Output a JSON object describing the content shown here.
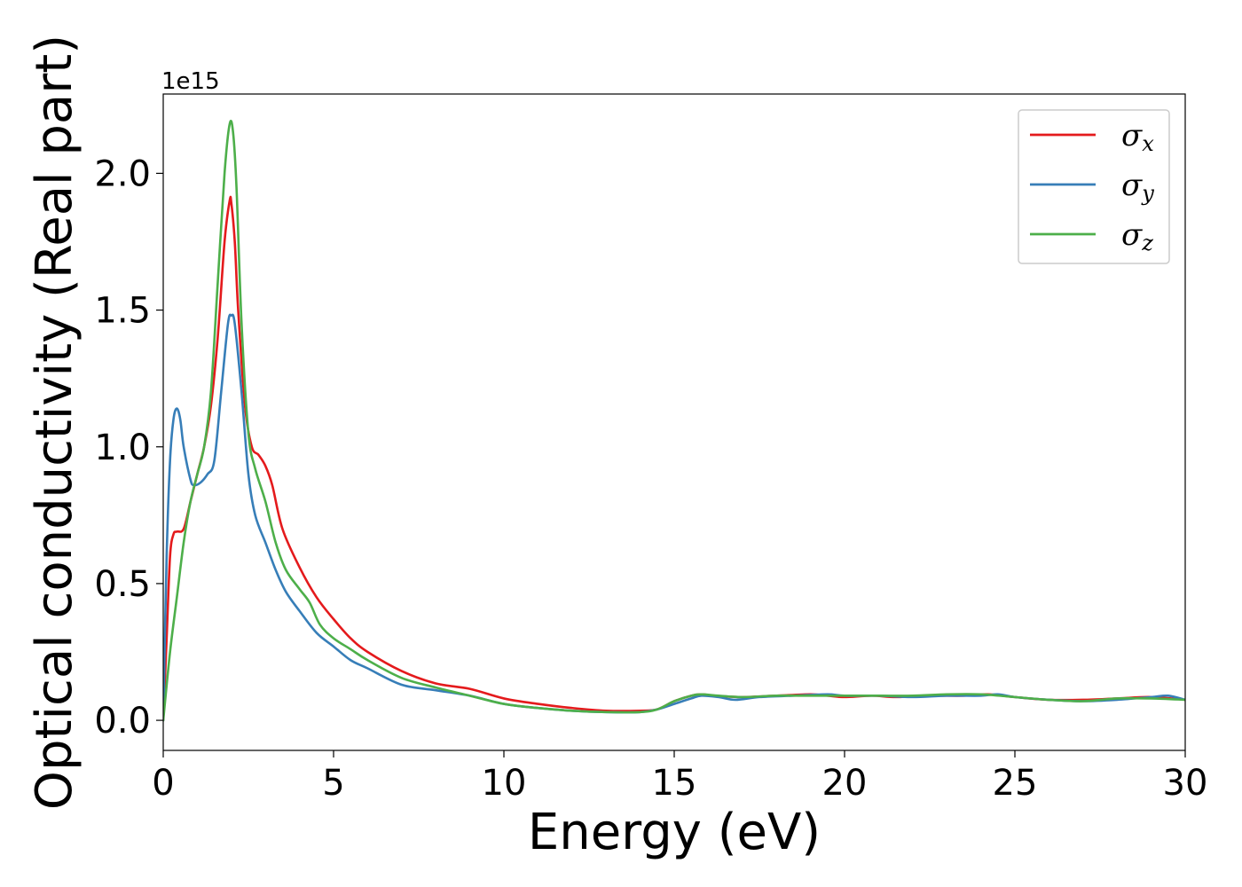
{
  "chart_data": {
    "type": "line",
    "title": "",
    "xlabel": "Energy (eV)",
    "ylabel": "Optical conductivity (Real part)",
    "y_offset_label": "1e15",
    "xlim": [
      0,
      30
    ],
    "ylim": [
      -0.11,
      2.29
    ],
    "xticks": [
      0,
      5,
      10,
      15,
      20,
      25,
      30
    ],
    "xtick_labels": [
      "0",
      "5",
      "10",
      "15",
      "20",
      "25",
      "30"
    ],
    "yticks": [
      0.0,
      0.5,
      1.0,
      1.5,
      2.0
    ],
    "ytick_labels": [
      "0.0",
      "0.5",
      "1.0",
      "1.5",
      "2.0"
    ],
    "grid": false,
    "legend_position": "top-right",
    "series": [
      {
        "name": "σx",
        "legend_symbol": "σ",
        "legend_sub": "x",
        "color": "#e41a1c",
        "x": [
          0,
          0.1,
          0.2,
          0.3,
          0.4,
          0.6,
          0.8,
          1.0,
          1.2,
          1.4,
          1.6,
          1.8,
          1.95,
          2.0,
          2.1,
          2.2,
          2.4,
          2.6,
          2.8,
          3.0,
          3.2,
          3.5,
          4.0,
          4.5,
          5.0,
          5.5,
          6.0,
          7.0,
          8.0,
          9.0,
          10.0,
          11.0,
          12.0,
          13.0,
          14.0,
          14.5,
          15.0,
          15.5,
          15.8,
          16.2,
          17.0,
          18.0,
          19.0,
          19.5,
          20.0,
          20.8,
          21.5,
          22.5,
          23.5,
          24.2,
          25.0,
          26.0,
          27.0,
          28.0,
          29.0,
          30.0
        ],
        "y": [
          0.0,
          0.3,
          0.6,
          0.68,
          0.69,
          0.7,
          0.8,
          0.9,
          1.0,
          1.15,
          1.4,
          1.75,
          1.9,
          1.89,
          1.75,
          1.5,
          1.15,
          1.0,
          0.97,
          0.93,
          0.86,
          0.7,
          0.56,
          0.45,
          0.37,
          0.3,
          0.25,
          0.18,
          0.135,
          0.115,
          0.08,
          0.06,
          0.045,
          0.035,
          0.035,
          0.04,
          0.07,
          0.09,
          0.095,
          0.09,
          0.085,
          0.09,
          0.095,
          0.09,
          0.085,
          0.09,
          0.085,
          0.09,
          0.09,
          0.095,
          0.085,
          0.075,
          0.075,
          0.08,
          0.085,
          0.075
        ]
      },
      {
        "name": "σy",
        "legend_symbol": "σ",
        "legend_sub": "y",
        "color": "#377eb8",
        "x": [
          0,
          0.1,
          0.2,
          0.3,
          0.4,
          0.5,
          0.6,
          0.8,
          0.9,
          1.1,
          1.3,
          1.5,
          1.7,
          1.9,
          2.0,
          2.1,
          2.3,
          2.5,
          2.7,
          3.0,
          3.3,
          3.6,
          4.0,
          4.5,
          5.0,
          5.5,
          6.0,
          7.0,
          8.0,
          9.0,
          10.0,
          11.0,
          12.0,
          13.0,
          14.0,
          14.5,
          15.0,
          15.5,
          15.8,
          16.3,
          16.8,
          17.5,
          18.5,
          19.5,
          20.0,
          21.0,
          22.0,
          23.0,
          24.0,
          24.5,
          25.0,
          26.0,
          27.0,
          28.0,
          29.0,
          29.5,
          30.0
        ],
        "y": [
          0.0,
          0.6,
          0.95,
          1.1,
          1.14,
          1.1,
          1.0,
          0.88,
          0.86,
          0.87,
          0.9,
          0.95,
          1.2,
          1.45,
          1.48,
          1.45,
          1.2,
          0.9,
          0.75,
          0.65,
          0.55,
          0.47,
          0.4,
          0.32,
          0.27,
          0.22,
          0.19,
          0.13,
          0.11,
          0.09,
          0.06,
          0.045,
          0.035,
          0.03,
          0.03,
          0.04,
          0.06,
          0.08,
          0.09,
          0.085,
          0.075,
          0.085,
          0.09,
          0.095,
          0.09,
          0.09,
          0.085,
          0.09,
          0.09,
          0.095,
          0.085,
          0.075,
          0.07,
          0.075,
          0.085,
          0.09,
          0.075
        ]
      },
      {
        "name": "σz",
        "legend_symbol": "σ",
        "legend_sub": "z",
        "color": "#4daf4a",
        "x": [
          0,
          0.2,
          0.4,
          0.6,
          0.8,
          1.0,
          1.2,
          1.4,
          1.6,
          1.8,
          1.95,
          2.05,
          2.15,
          2.3,
          2.5,
          2.7,
          3.0,
          3.3,
          3.6,
          4.0,
          4.3,
          4.6,
          5.0,
          5.5,
          6.0,
          7.0,
          8.0,
          9.0,
          10.0,
          11.0,
          12.0,
          13.0,
          14.0,
          14.5,
          15.0,
          15.5,
          15.8,
          16.3,
          17.0,
          18.0,
          19.0,
          20.0,
          21.0,
          22.0,
          23.0,
          24.0,
          25.0,
          26.0,
          27.0,
          28.0,
          29.0,
          30.0
        ],
        "y": [
          0.0,
          0.25,
          0.45,
          0.65,
          0.8,
          0.9,
          1.0,
          1.2,
          1.6,
          2.0,
          2.18,
          2.15,
          1.95,
          1.45,
          1.05,
          0.92,
          0.8,
          0.65,
          0.55,
          0.48,
          0.43,
          0.35,
          0.3,
          0.26,
          0.22,
          0.155,
          0.12,
          0.09,
          0.06,
          0.045,
          0.035,
          0.03,
          0.03,
          0.04,
          0.07,
          0.09,
          0.095,
          0.09,
          0.085,
          0.09,
          0.09,
          0.09,
          0.09,
          0.09,
          0.095,
          0.095,
          0.085,
          0.075,
          0.07,
          0.08,
          0.08,
          0.075
        ]
      }
    ]
  }
}
